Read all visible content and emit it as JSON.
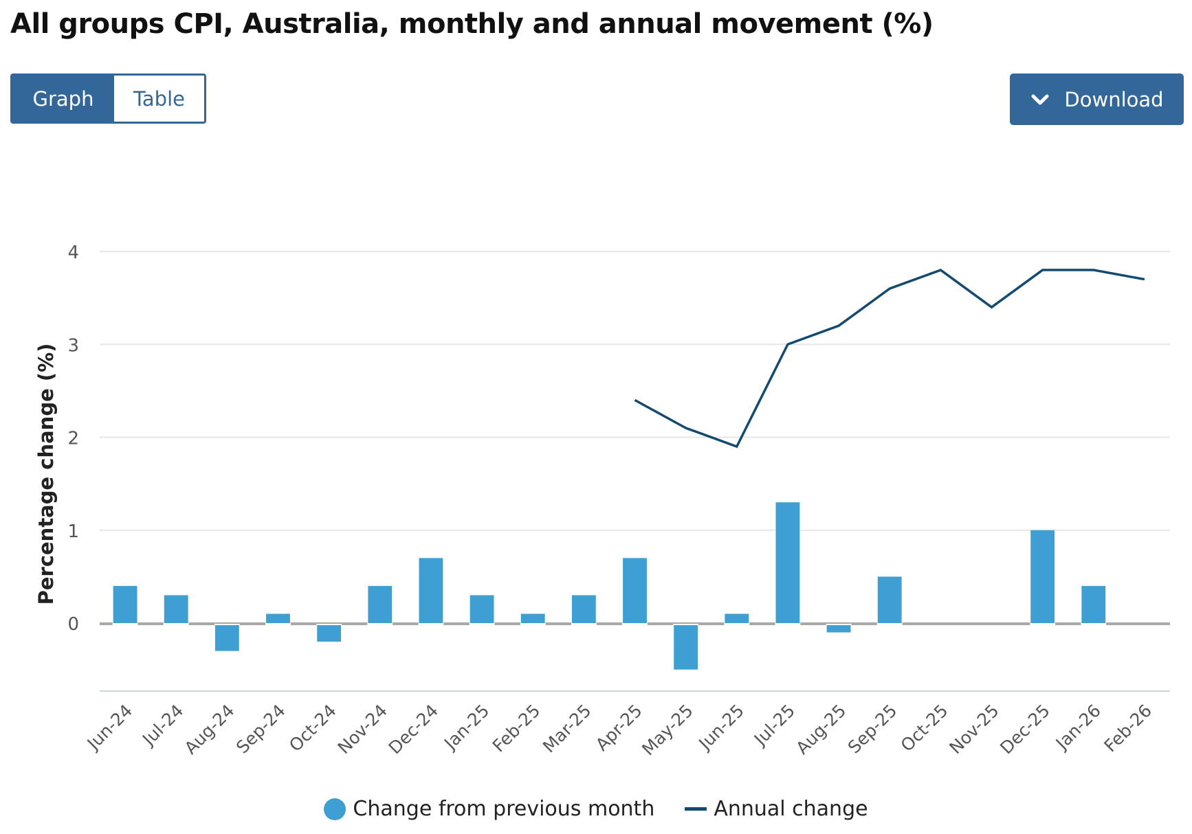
{
  "title": "All groups CPI, Australia, monthly and annual movement (%)",
  "view_toggle": {
    "graph_label": "Graph",
    "table_label": "Table",
    "active": "Graph"
  },
  "download": {
    "label": "Download",
    "icon": "chevron-down-icon"
  },
  "colors": {
    "accent": "#336699",
    "bar": "#3e9fd3",
    "line": "#134a70",
    "zero_line": "#a8a8a8",
    "grid": "#e6e6e6",
    "axis": "#ccd6eb",
    "tick_text": "#555555"
  },
  "chart_data": {
    "type": "bar",
    "title": "All groups CPI, Australia, monthly and annual movement (%)",
    "xlabel": "",
    "ylabel": "Percentage change (%)",
    "ylim": [
      -0.75,
      4
    ],
    "yticks": [
      0,
      1,
      2,
      3,
      4
    ],
    "grid": true,
    "legend_position": "bottom-center",
    "categories": [
      "Jun-24",
      "Jul-24",
      "Aug-24",
      "Sep-24",
      "Oct-24",
      "Nov-24",
      "Dec-24",
      "Jan-25",
      "Feb-25",
      "Mar-25",
      "Apr-25",
      "May-25",
      "Jun-25",
      "Jul-25",
      "Aug-25",
      "Sep-25",
      "Oct-25",
      "Nov-25",
      "Dec-25",
      "Jan-26",
      "Feb-26"
    ],
    "series": [
      {
        "name": "Change from previous month",
        "type": "bar",
        "values": [
          0.4,
          0.3,
          -0.3,
          0.1,
          -0.2,
          0.4,
          0.7,
          0.3,
          0.1,
          0.3,
          0.7,
          -0.5,
          0.1,
          1.3,
          -0.1,
          0.5,
          0.0,
          0.0,
          1.0,
          0.4,
          0.0
        ]
      },
      {
        "name": "Annual change",
        "type": "line",
        "values": [
          null,
          null,
          null,
          null,
          null,
          null,
          null,
          null,
          null,
          null,
          2.4,
          2.1,
          1.9,
          3.0,
          3.2,
          3.6,
          3.8,
          3.4,
          3.8,
          3.8,
          3.7
        ]
      }
    ]
  }
}
